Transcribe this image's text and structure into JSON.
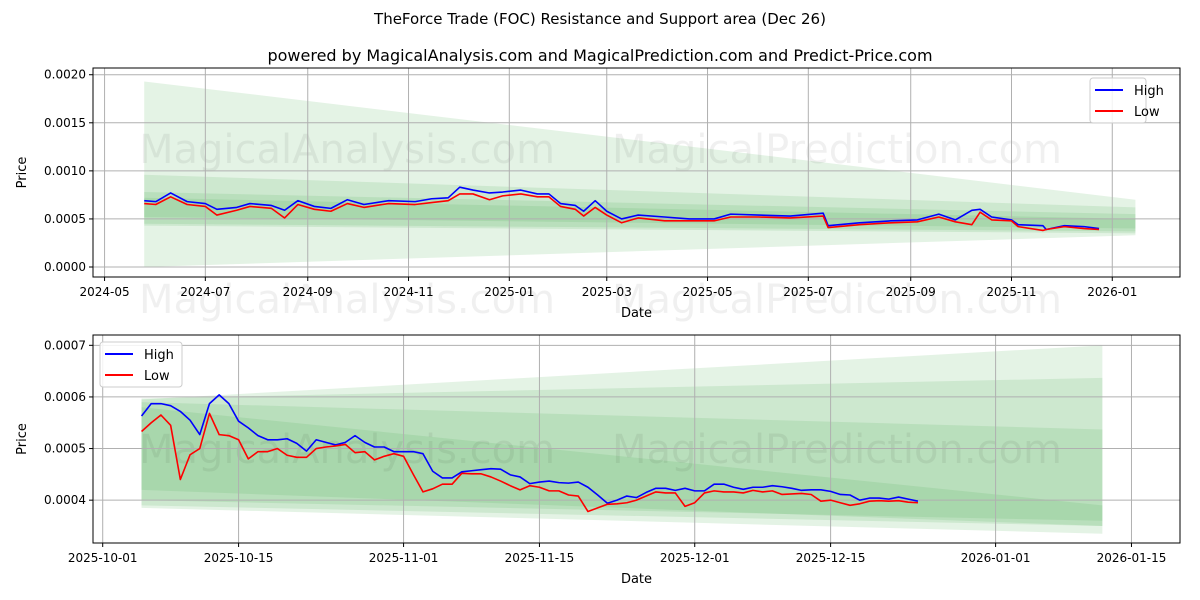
{
  "header": {
    "title": "TheForce Trade (FOC) Resistance and Support area (Dec 26)",
    "subtitle": "powered by MagicalAnalysis.com and MagicalPrediction.com and Predict-Price.com"
  },
  "watermarks": [
    "MagicalAnalysis.com",
    "MagicalPrediction.com"
  ],
  "colors": {
    "high": "#0000ff",
    "low": "#ff0000",
    "band": "#4caf50"
  },
  "chart_data": [
    {
      "type": "line",
      "xlabel": "Date",
      "ylabel": "Price",
      "xlim": [
        "2024-04-24",
        "2026-02-11"
      ],
      "ylim": [
        -0.000104,
        0.00207
      ],
      "grid": true,
      "legend": "top-right",
      "xticks": [
        "2024-05",
        "2024-07",
        "2024-09",
        "2024-11",
        "2025-01",
        "2025-03",
        "2025-05",
        "2025-07",
        "2025-09",
        "2025-11",
        "2026-01"
      ],
      "yticks": [
        "0.0000",
        "0.0005",
        "0.0010",
        "0.0015",
        "0.0020"
      ],
      "bands": [
        {
          "start": "2024-05-25",
          "end": "2026-01-15",
          "from": [
            0.0,
            0.00193
          ],
          "to": [
            0.00033,
            0.0007
          ]
        },
        {
          "start": "2024-05-25",
          "end": "2026-01-15",
          "from": [
            0.00043,
            0.00096
          ],
          "to": [
            0.00035,
            0.00062
          ]
        },
        {
          "start": "2024-05-25",
          "end": "2026-01-15",
          "from": [
            0.00045,
            0.00078
          ],
          "to": [
            0.00037,
            0.00055
          ]
        },
        {
          "start": "2024-05-25",
          "end": "2026-01-15",
          "from": [
            0.00052,
            0.00072
          ],
          "to": [
            0.0004,
            0.0005
          ]
        }
      ],
      "series": [
        {
          "name": "High",
          "points": [
            [
              "2024-05-25",
              0.00069
            ],
            [
              "2024-06-01",
              0.00068
            ],
            [
              "2024-06-10",
              0.00077
            ],
            [
              "2024-06-20",
              0.00068
            ],
            [
              "2024-07-01",
              0.00066
            ],
            [
              "2024-07-08",
              0.0006
            ],
            [
              "2024-07-20",
              0.00062
            ],
            [
              "2024-07-28",
              0.00066
            ],
            [
              "2024-08-10",
              0.00064
            ],
            [
              "2024-08-18",
              0.00059
            ],
            [
              "2024-08-26",
              0.00069
            ],
            [
              "2024-09-05",
              0.00063
            ],
            [
              "2024-09-15",
              0.00061
            ],
            [
              "2024-09-25",
              0.0007
            ],
            [
              "2024-10-05",
              0.00065
            ],
            [
              "2024-10-20",
              0.00069
            ],
            [
              "2024-11-05",
              0.00068
            ],
            [
              "2024-11-15",
              0.00071
            ],
            [
              "2024-11-25",
              0.00072
            ],
            [
              "2024-12-02",
              0.00083
            ],
            [
              "2024-12-10",
              0.0008
            ],
            [
              "2024-12-20",
              0.00077
            ],
            [
              "2024-12-28",
              0.00078
            ],
            [
              "2025-01-08",
              0.0008
            ],
            [
              "2025-01-18",
              0.00076
            ],
            [
              "2025-01-25",
              0.00076
            ],
            [
              "2025-02-01",
              0.00066
            ],
            [
              "2025-02-10",
              0.00064
            ],
            [
              "2025-02-15",
              0.00058
            ],
            [
              "2025-02-22",
              0.00069
            ],
            [
              "2025-03-01",
              0.00058
            ],
            [
              "2025-03-10",
              0.0005
            ],
            [
              "2025-03-20",
              0.00054
            ],
            [
              "2025-04-05",
              0.00052
            ],
            [
              "2025-04-20",
              0.0005
            ],
            [
              "2025-05-05",
              0.0005
            ],
            [
              "2025-05-15",
              0.00055
            ],
            [
              "2025-06-01",
              0.00054
            ],
            [
              "2025-06-20",
              0.00053
            ],
            [
              "2025-07-10",
              0.00056
            ],
            [
              "2025-07-13",
              0.00043
            ],
            [
              "2025-08-01",
              0.00046
            ],
            [
              "2025-08-20",
              0.00048
            ],
            [
              "2025-09-05",
              0.00049
            ],
            [
              "2025-09-18",
              0.00055
            ],
            [
              "2025-09-28",
              0.00049
            ],
            [
              "2025-10-08",
              0.00059
            ],
            [
              "2025-10-13",
              0.0006
            ],
            [
              "2025-10-20",
              0.00052
            ],
            [
              "2025-11-01",
              0.00049
            ],
            [
              "2025-11-05",
              0.00044
            ],
            [
              "2025-11-20",
              0.00043
            ],
            [
              "2025-11-22",
              0.00039
            ],
            [
              "2025-12-03",
              0.00043
            ],
            [
              "2025-12-15",
              0.00042
            ],
            [
              "2025-12-24",
              0.0004
            ]
          ]
        },
        {
          "name": "Low",
          "points": [
            [
              "2024-05-25",
              0.00066
            ],
            [
              "2024-06-01",
              0.00065
            ],
            [
              "2024-06-10",
              0.00073
            ],
            [
              "2024-06-20",
              0.00065
            ],
            [
              "2024-07-01",
              0.00063
            ],
            [
              "2024-07-08",
              0.00054
            ],
            [
              "2024-07-20",
              0.00059
            ],
            [
              "2024-07-28",
              0.00063
            ],
            [
              "2024-08-10",
              0.00061
            ],
            [
              "2024-08-18",
              0.00051
            ],
            [
              "2024-08-26",
              0.00065
            ],
            [
              "2024-09-05",
              0.0006
            ],
            [
              "2024-09-15",
              0.00058
            ],
            [
              "2024-09-25",
              0.00066
            ],
            [
              "2024-10-05",
              0.00062
            ],
            [
              "2024-10-20",
              0.00066
            ],
            [
              "2024-11-05",
              0.00065
            ],
            [
              "2024-11-15",
              0.00067
            ],
            [
              "2024-11-25",
              0.00069
            ],
            [
              "2024-12-02",
              0.00076
            ],
            [
              "2024-12-10",
              0.00076
            ],
            [
              "2024-12-20",
              0.0007
            ],
            [
              "2024-12-28",
              0.00074
            ],
            [
              "2025-01-08",
              0.00076
            ],
            [
              "2025-01-18",
              0.00073
            ],
            [
              "2025-01-25",
              0.00073
            ],
            [
              "2025-02-01",
              0.00063
            ],
            [
              "2025-02-10",
              0.0006
            ],
            [
              "2025-02-15",
              0.00053
            ],
            [
              "2025-02-22",
              0.00062
            ],
            [
              "2025-03-01",
              0.00054
            ],
            [
              "2025-03-10",
              0.00046
            ],
            [
              "2025-03-20",
              0.00051
            ],
            [
              "2025-04-05",
              0.00048
            ],
            [
              "2025-04-20",
              0.00048
            ],
            [
              "2025-05-05",
              0.00048
            ],
            [
              "2025-05-15",
              0.00052
            ],
            [
              "2025-06-01",
              0.00052
            ],
            [
              "2025-06-20",
              0.00051
            ],
            [
              "2025-07-10",
              0.00053
            ],
            [
              "2025-07-13",
              0.00041
            ],
            [
              "2025-08-01",
              0.00044
            ],
            [
              "2025-08-20",
              0.00046
            ],
            [
              "2025-09-05",
              0.00047
            ],
            [
              "2025-09-18",
              0.00052
            ],
            [
              "2025-09-28",
              0.00047
            ],
            [
              "2025-10-08",
              0.00044
            ],
            [
              "2025-10-13",
              0.00057
            ],
            [
              "2025-10-20",
              0.00049
            ],
            [
              "2025-11-01",
              0.00048
            ],
            [
              "2025-11-05",
              0.00042
            ],
            [
              "2025-11-20",
              0.00038
            ],
            [
              "2025-11-22",
              0.00039
            ],
            [
              "2025-12-03",
              0.00042
            ],
            [
              "2025-12-15",
              0.0004
            ],
            [
              "2025-12-24",
              0.00039
            ]
          ]
        }
      ]
    },
    {
      "type": "line",
      "xlabel": "Date",
      "ylabel": "Price",
      "xlim": [
        "2025-09-30",
        "2026-01-20"
      ],
      "ylim": [
        0.000317,
        0.00072
      ],
      "grid": true,
      "legend": "top-left",
      "xticks": [
        "2025-10-01",
        "2025-10-15",
        "2025-11-01",
        "2025-11-15",
        "2025-12-01",
        "2025-12-15",
        "2026-01-01",
        "2026-01-15"
      ],
      "yticks": [
        "0.0004",
        "0.0005",
        "0.0006",
        "0.0007"
      ],
      "bands": [
        {
          "start": "2025-10-05",
          "end": "2026-01-12",
          "from": [
            0.000385,
            0.000595
          ],
          "to": [
            0.000335,
            0.0007
          ]
        },
        {
          "start": "2025-10-05",
          "end": "2026-01-12",
          "from": [
            0.00039,
            0.000597
          ],
          "to": [
            0.00035,
            0.000637
          ]
        },
        {
          "start": "2025-10-05",
          "end": "2026-01-12",
          "from": [
            0.0004,
            0.00059
          ],
          "to": [
            0.00036,
            0.000537
          ]
        },
        {
          "start": "2025-10-05",
          "end": "2026-01-12",
          "from": [
            0.00042,
            0.00058
          ],
          "to": [
            0.00035,
            0.00039
          ]
        }
      ],
      "start_date": "2025-10-05",
      "series": [
        {
          "name": "High",
          "values": [
            0.000563,
            0.000587,
            0.000587,
            0.000583,
            0.000572,
            0.000555,
            0.000527,
            0.000587,
            0.000604,
            0.000587,
            0.000553,
            0.00054,
            0.000525,
            0.000517,
            0.000517,
            0.000519,
            0.00051,
            0.000495,
            0.000517,
            0.000512,
            0.000507,
            0.000512,
            0.000525,
            0.000512,
            0.000503,
            0.000503,
            0.000494,
            0.000494,
            0.000494,
            0.00049,
            0.000456,
            0.000443,
            0.000443,
            0.000455,
            0.000457,
            0.000459,
            0.000461,
            0.00046,
            0.000449,
            0.000445,
            0.000432,
            0.000435,
            0.000437,
            0.000434,
            0.000433,
            0.000435,
            0.000425,
            0.00041,
            0.000394,
            0.0004,
            0.000408,
            0.000405,
            0.000415,
            0.000423,
            0.000423,
            0.000419,
            0.000423,
            0.000418,
            0.000418,
            0.000431,
            0.000431,
            0.000425,
            0.000421,
            0.000425,
            0.000425,
            0.000428,
            0.000426,
            0.000423,
            0.000419,
            0.00042,
            0.00042,
            0.000417,
            0.000411,
            0.00041,
            0.0004,
            0.000404,
            0.000404,
            0.000402,
            0.000406,
            0.000402,
            0.000398
          ]
        },
        {
          "name": "Low",
          "values": [
            0.000533,
            0.00055,
            0.000565,
            0.000545,
            0.00044,
            0.000488,
            0.0005,
            0.000568,
            0.000527,
            0.000525,
            0.000517,
            0.00048,
            0.000494,
            0.000494,
            0.0005,
            0.000487,
            0.000483,
            0.000483,
            0.0005,
            0.000503,
            0.000505,
            0.000508,
            0.000492,
            0.000494,
            0.000478,
            0.000485,
            0.00049,
            0.000485,
            0.00045,
            0.000416,
            0.000422,
            0.000431,
            0.000431,
            0.000452,
            0.000451,
            0.000451,
            0.000445,
            0.000437,
            0.000428,
            0.00042,
            0.000428,
            0.000425,
            0.000418,
            0.000418,
            0.00041,
            0.000408,
            0.000378,
            0.000385,
            0.000392,
            0.000393,
            0.000395,
            0.0004,
            0.000408,
            0.000416,
            0.000414,
            0.000414,
            0.000388,
            0.000395,
            0.000414,
            0.000418,
            0.000416,
            0.000416,
            0.000414,
            0.000419,
            0.000416,
            0.000418,
            0.000411,
            0.000412,
            0.000413,
            0.000411,
            0.000398,
            0.0004,
            0.000395,
            0.00039,
            0.000393,
            0.000398,
            0.000399,
            0.000398,
            0.000399,
            0.000396,
            0.000395
          ]
        }
      ]
    }
  ]
}
